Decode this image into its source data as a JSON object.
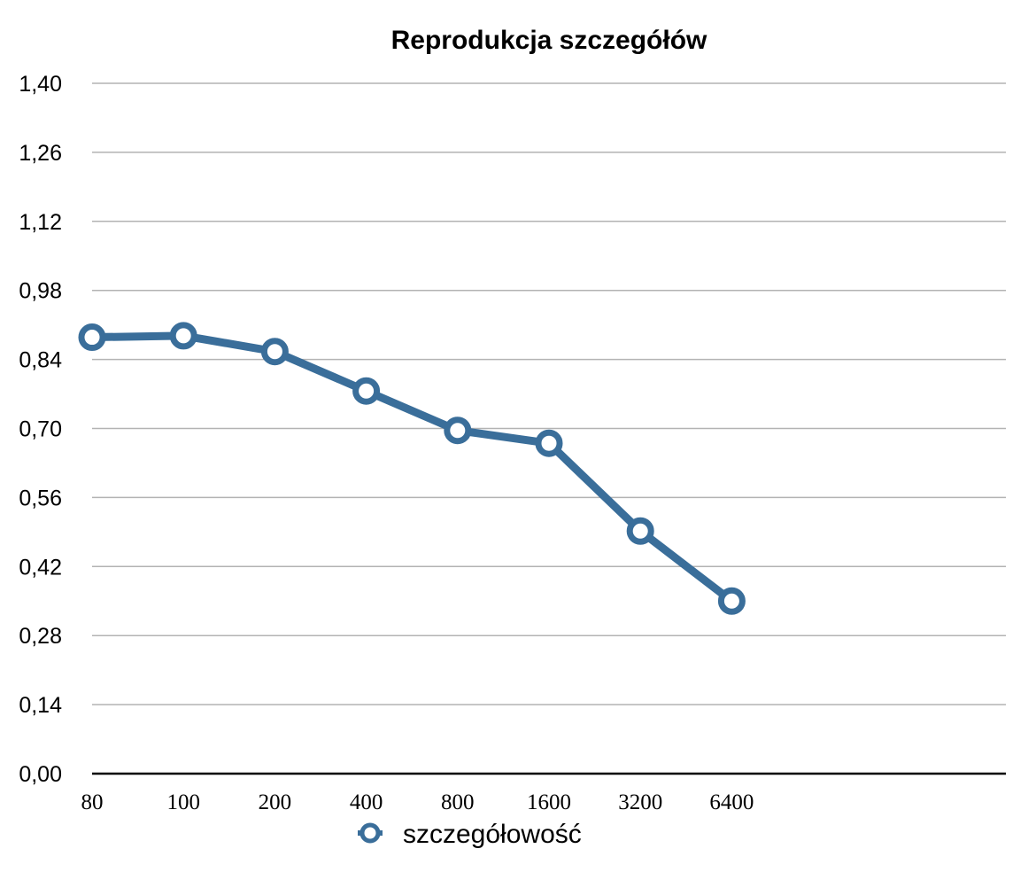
{
  "chart_data": {
    "type": "line",
    "title": "Reprodukcja szczegółów",
    "xlabel": "",
    "ylabel": "",
    "categories": [
      "80",
      "100",
      "200",
      "400",
      "800",
      "1600",
      "3200",
      "6400"
    ],
    "series": [
      {
        "name": "szczegółowość",
        "values": [
          0.885,
          0.888,
          0.856,
          0.776,
          0.696,
          0.67,
          0.492,
          0.35
        ],
        "color": "#3a6e9a"
      }
    ],
    "ylim": [
      0.0,
      1.4
    ],
    "yticks": [
      "0,00",
      "0,14",
      "0,28",
      "0,42",
      "0,56",
      "0,70",
      "0,84",
      "0,98",
      "1,12",
      "1,26",
      "1,40"
    ],
    "grid": true,
    "legend": "bottom"
  }
}
